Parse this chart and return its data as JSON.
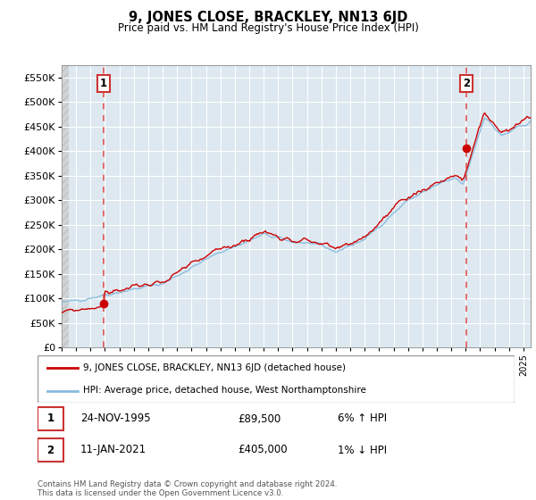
{
  "title": "9, JONES CLOSE, BRACKLEY, NN13 6JD",
  "subtitle": "Price paid vs. HM Land Registry's House Price Index (HPI)",
  "ylim": [
    0,
    575000
  ],
  "yticks": [
    0,
    50000,
    100000,
    150000,
    200000,
    250000,
    300000,
    350000,
    400000,
    450000,
    500000,
    550000
  ],
  "ytick_labels": [
    "£0",
    "£50K",
    "£100K",
    "£150K",
    "£200K",
    "£250K",
    "£300K",
    "£350K",
    "£400K",
    "£450K",
    "£500K",
    "£550K"
  ],
  "plot_bg_color": "#dde8f0",
  "grid_color": "#ffffff",
  "sale1": {
    "price": 89500,
    "label": "1",
    "x": 1995.9
  },
  "sale2": {
    "price": 405000,
    "label": "2",
    "x": 2021.03
  },
  "sale_color": "#cc0000",
  "hpi_color": "#88bbdd",
  "vline_color": "#dd4444",
  "legend_label1": "9, JONES CLOSE, BRACKLEY, NN13 6JD (detached house)",
  "legend_label2": "HPI: Average price, detached house, West Northamptonshire",
  "table_row1": [
    "1",
    "24-NOV-1995",
    "£89,500",
    "6% ↑ HPI"
  ],
  "table_row2": [
    "2",
    "11-JAN-2021",
    "£405,000",
    "1% ↓ HPI"
  ],
  "footer": "Contains HM Land Registry data © Crown copyright and database right 2024.\nThis data is licensed under the Open Government Licence v3.0.",
  "xmin": 1993.0,
  "xmax": 2025.5,
  "xticks": [
    1993,
    1994,
    1995,
    1996,
    1997,
    1998,
    1999,
    2000,
    2001,
    2002,
    2003,
    2004,
    2005,
    2006,
    2007,
    2008,
    2009,
    2010,
    2011,
    2012,
    2013,
    2014,
    2015,
    2016,
    2017,
    2018,
    2019,
    2020,
    2021,
    2022,
    2023,
    2024,
    2025
  ],
  "hatch_xmax": 1993.5,
  "hatch_color": "#c8c8c8"
}
